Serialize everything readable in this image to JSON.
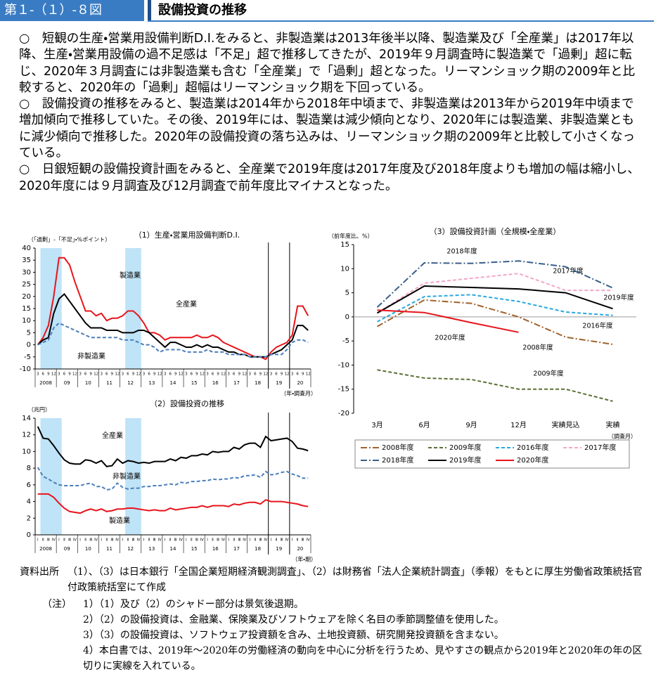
{
  "header": {
    "figure_no": "第１-（１）-８図",
    "title": "設備投資の推移"
  },
  "paragraphs": [
    "○　短観の生産・営業用設備判断D.I.をみると、非製造業は2013年後半以降、製造業及び「全産業」は2017年以降、生産・営業用設備の過不足感は「不足」超で推移してきたが、2019年９月調査時に製造業で「過剰」超に転じ、2020年３月調査には非製造業も含む「全産業」で「過剰」超となった。リーマンショック期の2009年と比較すると、2020年の「過剰」超幅はリーマンショック期を下回っている。",
    "○　設備投資の推移をみると、製造業は2014年から2018年中頃まで、非製造業は2013年から2019年中頃まで増加傾向で推移していた。その後、2019年には、製造業は減少傾向となり、2020年には製造業、非製造業ともに減少傾向で推移した。2020年の設備投資の落ち込みは、リーマンショック期の2009年と比較して小さくなっている。",
    "○　日銀短観の設備投資計画をみると、全産業で2019年度は2017年度及び2018年度よりも増加の幅は縮小し、2020年度には９月調査及び12月調査で前年度比マイナスとなった。"
  ],
  "chart_data": [
    {
      "type": "line",
      "title": "（1）生産・営業用設備判断D.I.",
      "y_label": "（「過剰」-「不足」・%ポイント）",
      "x_label": "（年・調査月）",
      "categories": [
        "3",
        "6",
        "9",
        "12",
        "3",
        "6",
        "9",
        "12",
        "3",
        "6",
        "9",
        "12",
        "3",
        "6",
        "9",
        "12",
        "3",
        "6",
        "9",
        "12",
        "3",
        "6",
        "9",
        "12",
        "3",
        "6",
        "9",
        "12",
        "3",
        "6",
        "9",
        "12",
        "3",
        "6",
        "9",
        "12",
        "3",
        "6",
        "9",
        "12",
        "3",
        "6",
        "9",
        "12",
        "3",
        "6",
        "9",
        "12",
        "3",
        "6",
        "9",
        "12"
      ],
      "x_groups": [
        "2008",
        "09",
        "10",
        "11",
        "12",
        "13",
        "14",
        "15",
        "16",
        "17",
        "18",
        "19",
        "20"
      ],
      "ylim": [
        -10,
        40
      ],
      "yticks": [
        -10,
        -5,
        0,
        5,
        10,
        15,
        20,
        25,
        30,
        35,
        40
      ],
      "shade": [
        [
          1,
          5
        ],
        [
          17,
          20
        ]
      ],
      "vlines": [
        44,
        48
      ],
      "series": [
        {
          "name": "製造業",
          "color": "#e8141b",
          "dash": "solid",
          "values": [
            0,
            3,
            8,
            20,
            36,
            36,
            33,
            26,
            20,
            14,
            14,
            12,
            13,
            10,
            11,
            11,
            12,
            14,
            14,
            12,
            9,
            5,
            5,
            4,
            2,
            3,
            3,
            3,
            3,
            3,
            4,
            3,
            3,
            4,
            3,
            1,
            0,
            -1,
            -2,
            -3,
            -4,
            -5,
            -5,
            -6,
            -3,
            -1,
            0,
            1,
            4,
            16,
            16,
            12
          ]
        },
        {
          "name": "全産業",
          "color": "#000000",
          "dash": "solid",
          "values": [
            0,
            2,
            3,
            13,
            19,
            21,
            18,
            15,
            12,
            9,
            7,
            7,
            7,
            6,
            6,
            6,
            5,
            5,
            5,
            6,
            6,
            5,
            3,
            1,
            -1,
            1,
            1,
            0,
            -1,
            -1,
            0,
            -1,
            0,
            -1,
            -1,
            -2,
            -3,
            -3,
            -4,
            -4,
            -5,
            -5,
            -5,
            -5,
            -4,
            -3,
            -2,
            0,
            2,
            8,
            8,
            6
          ]
        },
        {
          "name": "非製造業",
          "color": "#4a7ebb",
          "dash": "dash",
          "values": [
            0,
            1,
            2,
            7,
            9,
            8,
            7,
            6,
            5,
            4,
            3,
            3,
            3,
            3,
            3,
            3,
            2,
            2,
            2,
            1,
            0,
            0,
            -1,
            -3,
            -2,
            -2,
            -2,
            -2,
            -3,
            -3,
            -3,
            -3,
            -2,
            -3,
            -3,
            -3,
            -4,
            -4,
            -4,
            -4,
            -5,
            -5,
            -5,
            -5,
            -4,
            -4,
            -4,
            -2,
            1,
            2,
            2,
            1
          ]
        }
      ]
    },
    {
      "type": "line",
      "title": "（2）設備投資の推移",
      "y_label": "（兆円）",
      "x_label": "（年・期）",
      "categories": [
        "Ⅰ",
        "Ⅱ",
        "Ⅲ",
        "Ⅳ",
        "Ⅰ",
        "Ⅱ",
        "Ⅲ",
        "Ⅳ",
        "Ⅰ",
        "Ⅱ",
        "Ⅲ",
        "Ⅳ",
        "Ⅰ",
        "Ⅱ",
        "Ⅲ",
        "Ⅳ",
        "Ⅰ",
        "Ⅱ",
        "Ⅲ",
        "Ⅳ",
        "Ⅰ",
        "Ⅱ",
        "Ⅲ",
        "Ⅳ",
        "Ⅰ",
        "Ⅱ",
        "Ⅲ",
        "Ⅳ",
        "Ⅰ",
        "Ⅱ",
        "Ⅲ",
        "Ⅳ",
        "Ⅰ",
        "Ⅱ",
        "Ⅲ",
        "Ⅳ",
        "Ⅰ",
        "Ⅱ",
        "Ⅲ",
        "Ⅳ",
        "Ⅰ",
        "Ⅱ",
        "Ⅲ",
        "Ⅳ",
        "Ⅰ",
        "Ⅱ",
        "Ⅲ",
        "Ⅳ",
        "Ⅰ",
        "Ⅱ",
        "Ⅲ",
        "Ⅳ"
      ],
      "x_groups": [
        "2008",
        "09",
        "10",
        "11",
        "12",
        "13",
        "14",
        "15",
        "16",
        "17",
        "18",
        "19",
        "20"
      ],
      "ylim": [
        0,
        14
      ],
      "yticks": [
        0,
        2,
        4,
        6,
        8,
        10,
        12,
        14
      ],
      "shade": [
        [
          1,
          5
        ],
        [
          17,
          20
        ]
      ],
      "vlines": [
        44,
        48
      ],
      "series": [
        {
          "name": "全産業",
          "color": "#000000",
          "dash": "solid",
          "values": [
            13,
            11.6,
            11.5,
            10.7,
            9.8,
            9,
            8.6,
            8.5,
            8.5,
            9,
            8.9,
            8.6,
            8.9,
            8.2,
            8.3,
            9.1,
            8.6,
            8.9,
            8.8,
            8.6,
            8.7,
            8.6,
            8.8,
            8.8,
            8.8,
            9.1,
            8.9,
            9.3,
            9.2,
            9.5,
            9.5,
            9.7,
            9.6,
            10,
            9.9,
            10,
            10,
            10.5,
            10.3,
            10.8,
            11,
            11,
            10.5,
            11.8,
            11.3,
            11.4,
            11.5,
            11.6,
            11.2,
            10.4,
            10.3,
            10.1
          ]
        },
        {
          "name": "非製造業",
          "color": "#4a7ebb",
          "dash": "dash",
          "values": [
            8.1,
            7,
            6.7,
            6.3,
            6,
            5.9,
            5.9,
            5.9,
            5.9,
            6.1,
            6.2,
            5.8,
            5.8,
            5.4,
            5.5,
            6.2,
            5.7,
            5.5,
            5.6,
            5.6,
            5.8,
            5.8,
            5.9,
            5.9,
            6,
            6.1,
            6,
            6.3,
            6.2,
            6.4,
            6.4,
            6.5,
            6.5,
            6.7,
            6.6,
            6.7,
            6.7,
            6.9,
            6.8,
            7.1,
            7.1,
            7.2,
            6.9,
            7.6,
            7.2,
            7.3,
            7.5,
            7.6,
            7.3,
            7.1,
            6.8,
            6.8
          ]
        },
        {
          "name": "製造業",
          "color": "#e8141b",
          "dash": "solid",
          "values": [
            4.9,
            4.9,
            4.9,
            4.5,
            3.8,
            3.2,
            2.8,
            2.7,
            2.6,
            2.9,
            3.1,
            2.9,
            3.1,
            2.8,
            2.9,
            3.1,
            3.1,
            3.2,
            3.2,
            3.1,
            3,
            2.9,
            3,
            2.9,
            2.9,
            3.2,
            3,
            3.1,
            3.2,
            3.3,
            3.3,
            3.5,
            3.3,
            3.5,
            3.5,
            3.5,
            3.4,
            3.7,
            3.6,
            3.8,
            3.9,
            3.9,
            3.7,
            4.2,
            4,
            4,
            4,
            3.9,
            3.8,
            3.7,
            3.5,
            3.4
          ]
        }
      ]
    },
    {
      "type": "line",
      "title": "（3）設備投資計画（全規模・全産業）",
      "y_label": "（前年度比、%）",
      "x_label": "（調査月）",
      "categories": [
        "3月",
        "6月",
        "9月",
        "12月",
        "実績見込",
        "実績"
      ],
      "ylim": [
        -20,
        15
      ],
      "yticks": [
        -20,
        -15,
        -10,
        -5,
        0,
        5,
        10,
        15
      ],
      "zero_line": true,
      "legend": "bottom",
      "series": [
        {
          "name": "2008年度",
          "color": "#a0622d",
          "dash": "dashdot",
          "values": [
            -2,
            3.5,
            2.8,
            0,
            -4.2,
            -5.7
          ]
        },
        {
          "name": "2009年度",
          "color": "#5a7034",
          "dash": "dash",
          "values": [
            -11,
            -12.7,
            -13,
            -15,
            -15,
            -17.5
          ]
        },
        {
          "name": "2016年度",
          "color": "#29a8e0",
          "dash": "dash",
          "values": [
            -1,
            4.2,
            4.6,
            3.2,
            1,
            0.3
          ]
        },
        {
          "name": "2017年度",
          "color": "#f4a6c8",
          "dash": "dash",
          "values": [
            0.8,
            7,
            8,
            9,
            5.5,
            5.5
          ]
        },
        {
          "name": "2018年度",
          "color": "#3a5f8a",
          "dash": "dashdot",
          "values": [
            2,
            11.2,
            11.1,
            11.6,
            10.4,
            6
          ]
        },
        {
          "name": "2019年度",
          "color": "#000000",
          "dash": "solid",
          "values": [
            0.8,
            6.4,
            6.1,
            5.8,
            5,
            1.7
          ]
        },
        {
          "name": "2020年度",
          "color": "#e8141b",
          "dash": "solid",
          "values": [
            1.4,
            0.9,
            -1.2,
            -3.2,
            null,
            null
          ]
        }
      ]
    }
  ],
  "notes": {
    "source_label": "資料出所",
    "source": "（1）、（3）は日本銀行「全国企業短期経済観測調査」、（2）は財務省「法人企業統計調査」（季報）をもとに厚生労働省政策統括官付政策統括室にて作成",
    "note_label": "（注）",
    "items": [
      "1）（1）及び（2）のシャドー部分は景気後退期。",
      "2）（2）の設備投資は、金融業、保険業及びソフトウェアを除く名目の季節調整値を使用した。",
      "3）（3）の設備投資は、ソフトウェア投資額を含み、土地投資額、研究開発投資額を含まない。",
      "4）本白書では、2019年～2020年の労働経済の動向を中心に分析を行うため、見やすさの観点から2019年と2020年の年の区切りに実線を入れている。"
    ]
  }
}
